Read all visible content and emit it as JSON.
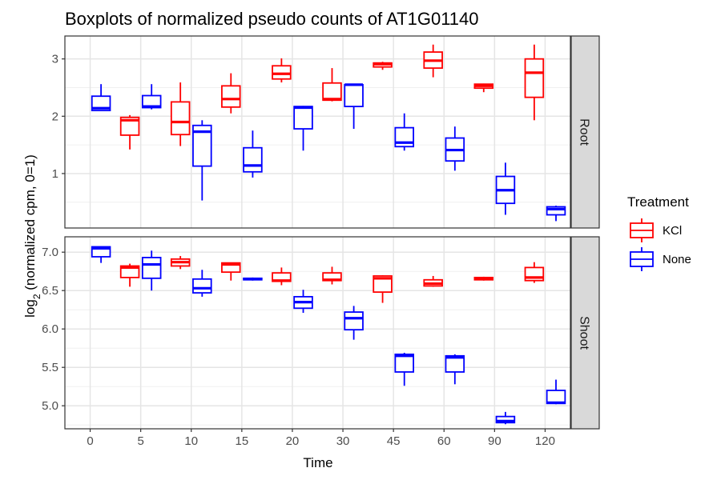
{
  "chart_data": {
    "type": "boxplot",
    "title": "Boxplots of normalized pseudo counts of AT1G01140",
    "xlabel": "Time",
    "ylabel_main": "log",
    "ylabel_sub": "2",
    "ylabel_rest": " (normalized cpm, 0=1)",
    "categories": [
      "0",
      "5",
      "10",
      "15",
      "20",
      "30",
      "45",
      "60",
      "90",
      "120"
    ],
    "legend": {
      "title": "Treatment",
      "placement": "right",
      "items": [
        {
          "name": "KCl",
          "color": "#ff0000"
        },
        {
          "name": "None",
          "color": "#0000ff"
        }
      ]
    },
    "panels": [
      {
        "name": "Root",
        "ylim": [
          0.05,
          3.4
        ],
        "yticks": [
          1,
          2,
          3
        ],
        "ytick_labels": [
          "1",
          "2",
          "3"
        ],
        "minor_ticks": [
          0.5,
          1.5,
          2.5
        ],
        "series": [
          {
            "name": "KCl",
            "boxes": [
              null,
              {
                "min": 1.42,
                "q1": 1.67,
                "median": 1.93,
                "q3": 1.98,
                "max": 2.02
              },
              {
                "min": 1.48,
                "q1": 1.68,
                "median": 1.9,
                "q3": 2.25,
                "max": 2.59
              },
              {
                "min": 2.05,
                "q1": 2.16,
                "median": 2.3,
                "q3": 2.53,
                "max": 2.75
              },
              {
                "min": 2.59,
                "q1": 2.65,
                "median": 2.74,
                "q3": 2.88,
                "max": 3.01
              },
              {
                "min": 2.26,
                "q1": 2.28,
                "median": 2.3,
                "q3": 2.58,
                "max": 2.84
              },
              {
                "min": 2.81,
                "q1": 2.86,
                "median": 2.91,
                "q3": 2.93,
                "max": 2.95
              },
              {
                "min": 2.68,
                "q1": 2.84,
                "median": 2.97,
                "q3": 3.12,
                "max": 3.25
              },
              {
                "min": 2.42,
                "q1": 2.49,
                "median": 2.53,
                "q3": 2.56,
                "max": 2.57
              },
              {
                "min": 1.93,
                "q1": 2.33,
                "median": 2.76,
                "q3": 3.0,
                "max": 3.25
              }
            ]
          },
          {
            "name": "None",
            "boxes": [
              {
                "min": 2.1,
                "q1": 2.1,
                "median": 2.14,
                "q3": 2.35,
                "max": 2.56
              },
              {
                "min": 2.12,
                "q1": 2.15,
                "median": 2.17,
                "q3": 2.36,
                "max": 2.56
              },
              {
                "min": 0.53,
                "q1": 1.13,
                "median": 1.73,
                "q3": 1.84,
                "max": 1.93
              },
              {
                "min": 0.93,
                "q1": 1.03,
                "median": 1.14,
                "q3": 1.45,
                "max": 1.75
              },
              {
                "min": 1.4,
                "q1": 1.78,
                "median": 2.15,
                "q3": 2.17,
                "max": 2.18
              },
              {
                "min": 1.78,
                "q1": 2.17,
                "median": 2.55,
                "q3": 2.55,
                "max": 2.56
              },
              {
                "min": 1.4,
                "q1": 1.47,
                "median": 1.54,
                "q3": 1.8,
                "max": 2.05
              },
              {
                "min": 1.05,
                "q1": 1.22,
                "median": 1.41,
                "q3": 1.62,
                "max": 1.82
              },
              {
                "min": 0.28,
                "q1": 0.48,
                "median": 0.71,
                "q3": 0.95,
                "max": 1.19
              },
              {
                "min": 0.17,
                "q1": 0.28,
                "median": 0.38,
                "q3": 0.42,
                "max": 0.44
              }
            ]
          }
        ]
      },
      {
        "name": "Shoot",
        "ylim": [
          4.7,
          7.2
        ],
        "yticks": [
          5.0,
          5.5,
          6.0,
          6.5,
          7.0
        ],
        "ytick_labels": [
          "5.0",
          "5.5",
          "6.0",
          "6.5",
          "7.0"
        ],
        "minor_ticks": [
          4.75,
          5.25,
          5.75,
          6.25,
          6.75
        ],
        "series": [
          {
            "name": "KCl",
            "boxes": [
              null,
              {
                "min": 6.55,
                "q1": 6.67,
                "median": 6.8,
                "q3": 6.82,
                "max": 6.85
              },
              {
                "min": 6.78,
                "q1": 6.82,
                "median": 6.87,
                "q3": 6.91,
                "max": 6.95
              },
              {
                "min": 6.63,
                "q1": 6.74,
                "median": 6.84,
                "q3": 6.86,
                "max": 6.86
              },
              {
                "min": 6.57,
                "q1": 6.62,
                "median": 6.63,
                "q3": 6.73,
                "max": 6.8
              },
              {
                "min": 6.58,
                "q1": 6.63,
                "median": 6.64,
                "q3": 6.73,
                "max": 6.81
              },
              {
                "min": 6.34,
                "q1": 6.48,
                "median": 6.66,
                "q3": 6.69,
                "max": 6.7
              },
              {
                "min": 6.55,
                "q1": 6.56,
                "median": 6.59,
                "q3": 6.64,
                "max": 6.69
              },
              {
                "min": 6.63,
                "q1": 6.64,
                "median": 6.66,
                "q3": 6.67,
                "max": 6.68
              },
              {
                "min": 6.6,
                "q1": 6.63,
                "median": 6.67,
                "q3": 6.8,
                "max": 6.87
              }
            ]
          },
          {
            "name": "None",
            "boxes": [
              {
                "min": 6.86,
                "q1": 6.94,
                "median": 7.05,
                "q3": 7.07,
                "max": 7.07
              },
              {
                "min": 6.5,
                "q1": 6.66,
                "median": 6.84,
                "q3": 6.93,
                "max": 7.02
              },
              {
                "min": 6.42,
                "q1": 6.47,
                "median": 6.53,
                "q3": 6.65,
                "max": 6.77
              },
              {
                "min": 6.63,
                "q1": 6.64,
                "median": 6.65,
                "q3": 6.66,
                "max": 6.67
              },
              {
                "min": 6.21,
                "q1": 6.27,
                "median": 6.35,
                "q3": 6.42,
                "max": 6.51
              },
              {
                "min": 5.86,
                "q1": 5.99,
                "median": 6.14,
                "q3": 6.22,
                "max": 6.3
              },
              {
                "min": 5.26,
                "q1": 5.44,
                "median": 5.65,
                "q3": 5.67,
                "max": 5.69
              },
              {
                "min": 5.28,
                "q1": 5.44,
                "median": 5.63,
                "q3": 5.65,
                "max": 5.67
              },
              {
                "min": 4.76,
                "q1": 4.78,
                "median": 4.8,
                "q3": 4.86,
                "max": 4.92
              },
              {
                "min": 5.02,
                "q1": 5.03,
                "median": 5.04,
                "q3": 5.2,
                "max": 5.34
              }
            ]
          }
        ]
      }
    ],
    "grid": true
  }
}
